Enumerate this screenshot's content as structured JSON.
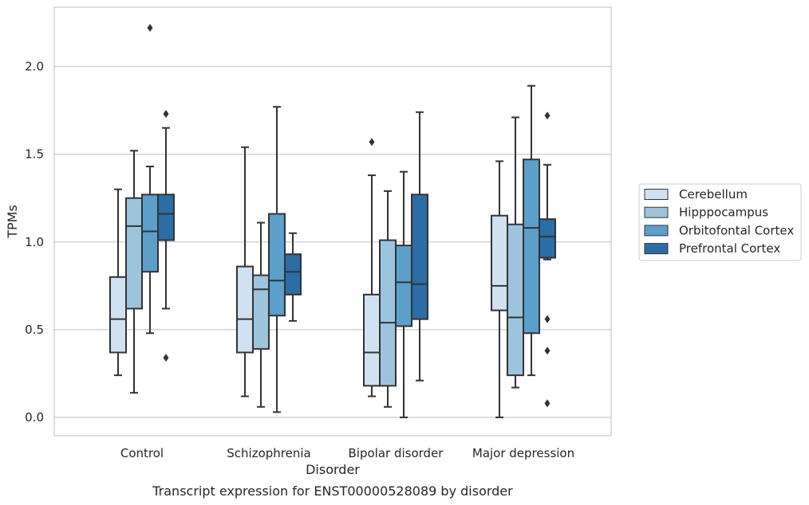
{
  "caption": "Transcript expression for ENST00000528089 by disorder",
  "chart_data": {
    "type": "box",
    "xlabel": "Disorder",
    "ylabel": "TPMs",
    "ylim": [
      -0.1,
      2.35
    ],
    "yticks": [
      0.0,
      0.5,
      1.0,
      1.5,
      2.0
    ],
    "ytick_labels": [
      "0.0",
      "0.5",
      "1.0",
      "1.5",
      "2.0"
    ],
    "grid": "horizontal",
    "legend_position": "right",
    "categories": [
      "Control",
      "Schizophrenia",
      "Bipolar disorder",
      "Major depression"
    ],
    "series": [
      {
        "name": "Cerebellum",
        "color": "#d0e1f1",
        "boxes": [
          {
            "whislo": 0.24,
            "q1": 0.37,
            "med": 0.56,
            "q3": 0.8,
            "whishi": 1.3,
            "fliers": []
          },
          {
            "whislo": 0.12,
            "q1": 0.37,
            "med": 0.56,
            "q3": 0.86,
            "whishi": 1.54,
            "fliers": []
          },
          {
            "whislo": 0.12,
            "q1": 0.18,
            "med": 0.37,
            "q3": 0.7,
            "whishi": 1.38,
            "fliers": [
              1.57
            ]
          },
          {
            "whislo": 0.0,
            "q1": 0.61,
            "med": 0.75,
            "q3": 1.15,
            "whishi": 1.46,
            "fliers": []
          }
        ]
      },
      {
        "name": "Hipppocampus",
        "color": "#9dc4dd",
        "boxes": [
          {
            "whislo": 0.14,
            "q1": 0.62,
            "med": 1.09,
            "q3": 1.25,
            "whishi": 1.52,
            "fliers": []
          },
          {
            "whislo": 0.06,
            "q1": 0.39,
            "med": 0.73,
            "q3": 0.81,
            "whishi": 1.11,
            "fliers": []
          },
          {
            "whislo": 0.06,
            "q1": 0.18,
            "med": 0.54,
            "q3": 1.01,
            "whishi": 1.29,
            "fliers": []
          },
          {
            "whislo": 0.17,
            "q1": 0.24,
            "med": 0.57,
            "q3": 1.1,
            "whishi": 1.71,
            "fliers": []
          }
        ]
      },
      {
        "name": "Orbitofontal Cortex",
        "color": "#5b9fca",
        "boxes": [
          {
            "whislo": 0.48,
            "q1": 0.83,
            "med": 1.06,
            "q3": 1.27,
            "whishi": 1.43,
            "fliers": [
              2.22
            ]
          },
          {
            "whislo": 0.03,
            "q1": 0.58,
            "med": 0.78,
            "q3": 1.16,
            "whishi": 1.77,
            "fliers": []
          },
          {
            "whislo": 0.0,
            "q1": 0.52,
            "med": 0.77,
            "q3": 0.98,
            "whishi": 1.4,
            "fliers": []
          },
          {
            "whislo": 0.24,
            "q1": 0.48,
            "med": 1.08,
            "q3": 1.47,
            "whishi": 1.89,
            "fliers": []
          }
        ]
      },
      {
        "name": "Prefrontal Cortex",
        "color": "#2c6da5",
        "boxes": [
          {
            "whislo": 0.62,
            "q1": 1.01,
            "med": 1.16,
            "q3": 1.27,
            "whishi": 1.65,
            "fliers": [
              0.34,
              1.73
            ]
          },
          {
            "whislo": 0.55,
            "q1": 0.7,
            "med": 0.83,
            "q3": 0.93,
            "whishi": 1.05,
            "fliers": []
          },
          {
            "whislo": 0.21,
            "q1": 0.56,
            "med": 0.76,
            "q3": 1.27,
            "whishi": 1.74,
            "fliers": []
          },
          {
            "whislo": 0.9,
            "q1": 0.91,
            "med": 1.03,
            "q3": 1.13,
            "whishi": 1.44,
            "fliers": [
              0.08,
              0.38,
              0.56,
              1.72
            ]
          }
        ]
      }
    ]
  }
}
